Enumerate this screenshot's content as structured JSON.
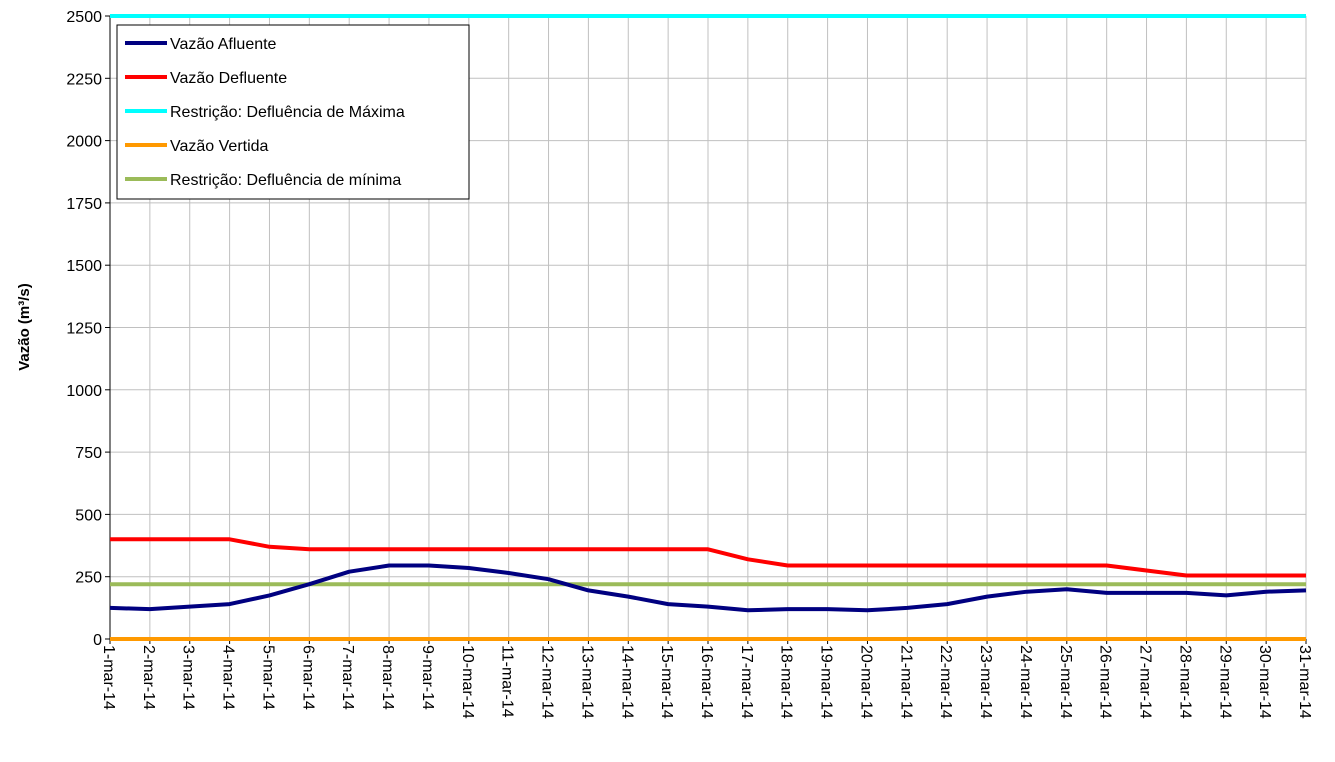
{
  "chart_data": {
    "type": "line",
    "title": "",
    "xlabel": "",
    "ylabel": "Vazão (m³/s)",
    "ylim": [
      0,
      2500
    ],
    "yticks": [
      0,
      250,
      500,
      750,
      1000,
      1250,
      1500,
      1750,
      2000,
      2250,
      2500
    ],
    "grid": true,
    "legend_position": "top-left",
    "categories": [
      "1-mar-14",
      "2-mar-14",
      "3-mar-14",
      "4-mar-14",
      "5-mar-14",
      "6-mar-14",
      "7-mar-14",
      "8-mar-14",
      "9-mar-14",
      "10-mar-14",
      "11-mar-14",
      "12-mar-14",
      "13-mar-14",
      "14-mar-14",
      "15-mar-14",
      "16-mar-14",
      "17-mar-14",
      "18-mar-14",
      "19-mar-14",
      "20-mar-14",
      "21-mar-14",
      "22-mar-14",
      "23-mar-14",
      "24-mar-14",
      "25-mar-14",
      "26-mar-14",
      "27-mar-14",
      "28-mar-14",
      "29-mar-14",
      "30-mar-14",
      "31-mar-14"
    ],
    "series": [
      {
        "name": "Vazão Afluente",
        "color": "#000080",
        "values": [
          125,
          120,
          130,
          140,
          175,
          220,
          270,
          295,
          295,
          285,
          265,
          240,
          195,
          170,
          140,
          130,
          115,
          120,
          120,
          115,
          125,
          140,
          170,
          190,
          200,
          185,
          185,
          185,
          175,
          190,
          195
        ]
      },
      {
        "name": "Vazão Defluente",
        "color": "#ff0000",
        "values": [
          400,
          400,
          400,
          400,
          370,
          360,
          360,
          360,
          360,
          360,
          360,
          360,
          360,
          360,
          360,
          360,
          320,
          295,
          295,
          295,
          295,
          295,
          295,
          295,
          295,
          295,
          275,
          255,
          255,
          255,
          255
        ]
      },
      {
        "name": "Restrição: Defluência de Máxima",
        "color": "#00ffff",
        "values": [
          2500,
          2500,
          2500,
          2500,
          2500,
          2500,
          2500,
          2500,
          2500,
          2500,
          2500,
          2500,
          2500,
          2500,
          2500,
          2500,
          2500,
          2500,
          2500,
          2500,
          2500,
          2500,
          2500,
          2500,
          2500,
          2500,
          2500,
          2500,
          2500,
          2500,
          2500
        ]
      },
      {
        "name": "Vazão Vertida",
        "color": "#ff9900",
        "values": [
          0,
          0,
          0,
          0,
          0,
          0,
          0,
          0,
          0,
          0,
          0,
          0,
          0,
          0,
          0,
          0,
          0,
          0,
          0,
          0,
          0,
          0,
          0,
          0,
          0,
          0,
          0,
          0,
          0,
          0,
          0
        ]
      },
      {
        "name": "Restrição: Defluência de mínima",
        "color": "#9bbb59",
        "values": [
          220,
          220,
          220,
          220,
          220,
          220,
          220,
          220,
          220,
          220,
          220,
          220,
          220,
          220,
          220,
          220,
          220,
          220,
          220,
          220,
          220,
          220,
          220,
          220,
          220,
          220,
          220,
          220,
          220,
          220,
          220
        ]
      }
    ]
  }
}
